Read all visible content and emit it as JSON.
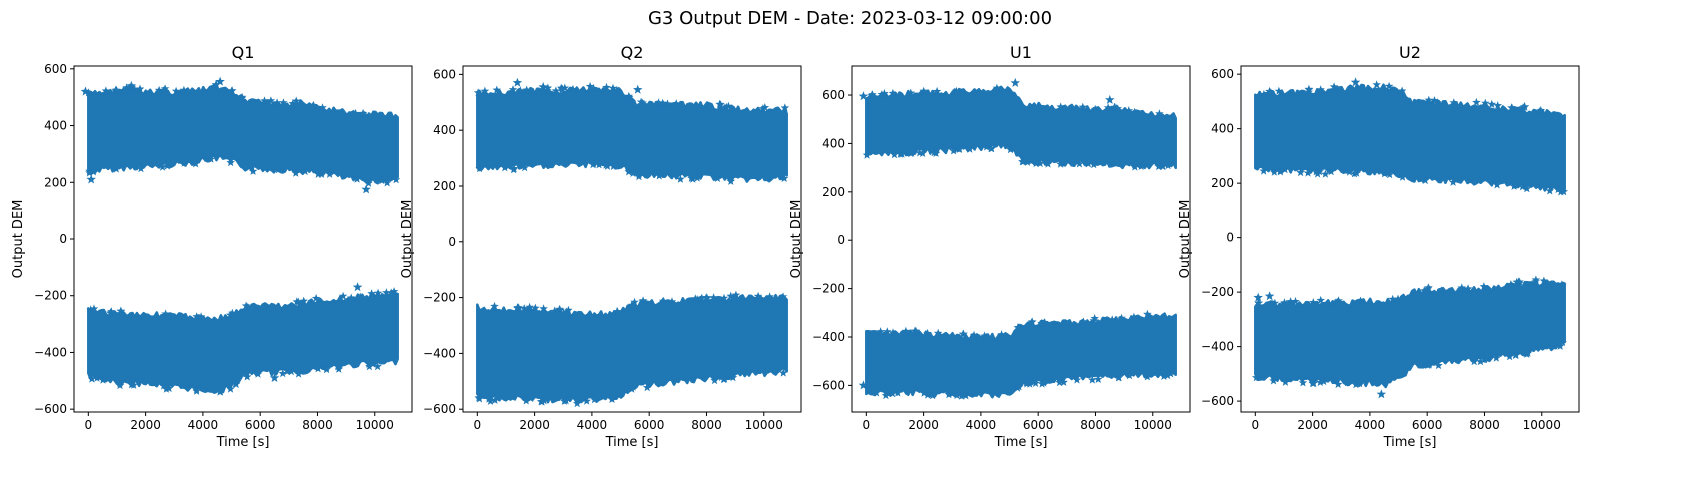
{
  "figure_title": "G3 Output DEM - Date: 2023-03-12 09:00:00",
  "chart_data": [
    {
      "type": "scatter",
      "title": "Q1",
      "xlabel": "Time [s]",
      "ylabel": "Output DEM",
      "marker": "star",
      "color": "#1f77b4",
      "xlim": [
        -500,
        11300
      ],
      "ylim": [
        -610,
        610
      ],
      "xticks": [
        0,
        2000,
        4000,
        6000,
        8000,
        10000
      ],
      "yticks": [
        -600,
        -400,
        -200,
        0,
        200,
        400,
        600
      ],
      "x": [
        0,
        500,
        1000,
        1500,
        2000,
        2500,
        3000,
        3500,
        4000,
        4500,
        5000,
        5500,
        6000,
        6500,
        7000,
        7500,
        8000,
        8500,
        9000,
        9500,
        10000,
        10500,
        10800
      ],
      "series": [
        {
          "upper_max": [
            510,
            515,
            520,
            525,
            515,
            520,
            515,
            520,
            525,
            535,
            515,
            485,
            480,
            480,
            475,
            480,
            460,
            455,
            445,
            440,
            440,
            440,
            430
          ],
          "upper_min": [
            240,
            245,
            250,
            255,
            255,
            260,
            265,
            270,
            280,
            285,
            280,
            250,
            250,
            245,
            245,
            240,
            235,
            230,
            215,
            210,
            205,
            210,
            220
          ]
        },
        {
          "upper_max": [
            -255,
            -260,
            -265,
            -265,
            -265,
            -270,
            -270,
            -275,
            -280,
            -280,
            -270,
            -240,
            -235,
            -235,
            -235,
            -230,
            -220,
            -215,
            -210,
            -205,
            -200,
            -200,
            -195
          ],
          "upper_min": [
            -480,
            -495,
            -505,
            -510,
            -505,
            -515,
            -520,
            -525,
            -530,
            -535,
            -520,
            -475,
            -470,
            -470,
            -465,
            -465,
            -455,
            -450,
            -445,
            -440,
            -440,
            -435,
            -430
          ]
        }
      ],
      "outliers": [
        [
          100,
          210
        ],
        [
          -100,
          520
        ],
        [
          1500,
          540
        ],
        [
          4600,
          555
        ],
        [
          9700,
          175
        ],
        [
          9400,
          -170
        ],
        [
          6500,
          -490
        ]
      ]
    },
    {
      "type": "scatter",
      "title": "Q2",
      "xlabel": "Time [s]",
      "ylabel": "Output DEM",
      "marker": "star",
      "color": "#1f77b4",
      "xlim": [
        -500,
        11300
      ],
      "ylim": [
        -610,
        630
      ],
      "xticks": [
        0,
        2000,
        4000,
        6000,
        8000,
        10000
      ],
      "yticks": [
        -600,
        -400,
        -200,
        0,
        200,
        400,
        600
      ],
      "x": [
        0,
        500,
        1000,
        1500,
        2000,
        2500,
        3000,
        3500,
        4000,
        4500,
        5000,
        5500,
        6000,
        6500,
        7000,
        7500,
        8000,
        8500,
        9000,
        9500,
        10000,
        10500,
        10800
      ],
      "series": [
        {
          "upper_max": [
            530,
            535,
            535,
            540,
            540,
            540,
            540,
            545,
            545,
            550,
            540,
            495,
            495,
            490,
            490,
            490,
            490,
            480,
            475,
            470,
            470,
            470,
            470
          ],
          "upper_min": [
            265,
            265,
            270,
            270,
            270,
            275,
            275,
            275,
            280,
            280,
            270,
            245,
            240,
            240,
            235,
            235,
            235,
            230,
            225,
            225,
            225,
            230,
            235
          ]
        },
        {
          "upper_max": [
            -235,
            -240,
            -245,
            -245,
            -245,
            -250,
            -255,
            -255,
            -260,
            -260,
            -250,
            -225,
            -220,
            -215,
            -215,
            -210,
            -205,
            -205,
            -200,
            -200,
            -200,
            -200,
            -200
          ],
          "upper_min": [
            -555,
            -560,
            -560,
            -560,
            -560,
            -565,
            -565,
            -570,
            -565,
            -565,
            -550,
            -515,
            -510,
            -505,
            -500,
            -495,
            -490,
            -485,
            -480,
            -475,
            -470,
            -465,
            -460
          ]
        }
      ],
      "outliers": [
        [
          1400,
          570
        ],
        [
          2300,
          555
        ],
        [
          5600,
          545
        ],
        [
          2700,
          -250
        ],
        [
          9800,
          -205
        ]
      ]
    },
    {
      "type": "scatter",
      "title": "U1",
      "xlabel": "Time [s]",
      "ylabel": "Output DEM",
      "marker": "star",
      "color": "#1f77b4",
      "xlim": [
        -500,
        11300
      ],
      "ylim": [
        -710,
        720
      ],
      "xticks": [
        0,
        2000,
        4000,
        6000,
        8000,
        10000
      ],
      "yticks": [
        -600,
        -400,
        -200,
        0,
        200,
        400,
        600
      ],
      "x": [
        0,
        500,
        1000,
        1500,
        2000,
        2500,
        3000,
        3500,
        4000,
        4500,
        5000,
        5500,
        6000,
        6500,
        7000,
        7500,
        8000,
        8500,
        9000,
        9500,
        10000,
        10500,
        10800
      ],
      "series": [
        {
          "upper_max": [
            595,
            600,
            600,
            605,
            605,
            610,
            610,
            615,
            615,
            620,
            625,
            555,
            555,
            550,
            550,
            545,
            540,
            540,
            535,
            525,
            520,
            520,
            510
          ],
          "upper_min": [
            355,
            360,
            360,
            365,
            370,
            370,
            375,
            380,
            385,
            390,
            390,
            330,
            325,
            325,
            320,
            320,
            315,
            315,
            310,
            310,
            310,
            310,
            310
          ]
        },
        {
          "upper_max": [
            -385,
            -385,
            -385,
            -385,
            -390,
            -390,
            -395,
            -400,
            -400,
            -400,
            -395,
            -345,
            -345,
            -345,
            -340,
            -340,
            -335,
            -330,
            -325,
            -320,
            -315,
            -315,
            -315
          ],
          "upper_min": [
            -625,
            -630,
            -630,
            -630,
            -630,
            -635,
            -635,
            -640,
            -640,
            -640,
            -630,
            -585,
            -585,
            -580,
            -575,
            -570,
            -565,
            -560,
            -560,
            -555,
            -555,
            -550,
            -550
          ]
        }
      ],
      "outliers": [
        [
          5200,
          650
        ],
        [
          8500,
          580
        ],
        [
          -100,
          -600
        ],
        [
          -100,
          595
        ]
      ]
    },
    {
      "type": "scatter",
      "title": "U2",
      "xlabel": "Time [s]",
      "ylabel": "Output DEM",
      "marker": "star",
      "color": "#1f77b4",
      "xlim": [
        -500,
        11300
      ],
      "ylim": [
        -640,
        630
      ],
      "xticks": [
        0,
        2000,
        4000,
        6000,
        8000,
        10000
      ],
      "yticks": [
        -600,
        -400,
        -200,
        0,
        200,
        400,
        600
      ],
      "x": [
        0,
        500,
        1000,
        1500,
        2000,
        2500,
        3000,
        3500,
        4000,
        4500,
        5000,
        5500,
        6000,
        6500,
        7000,
        7500,
        8000,
        8500,
        9000,
        9500,
        10000,
        10500,
        10800
      ],
      "series": [
        {
          "upper_max": [
            525,
            525,
            530,
            530,
            535,
            540,
            545,
            550,
            550,
            555,
            545,
            495,
            495,
            490,
            490,
            485,
            485,
            475,
            470,
            465,
            460,
            455,
            440
          ],
          "upper_min": [
            255,
            250,
            250,
            250,
            245,
            245,
            245,
            245,
            240,
            240,
            230,
            215,
            215,
            210,
            210,
            205,
            205,
            200,
            195,
            190,
            185,
            180,
            180
          ]
        },
        {
          "upper_max": [
            -250,
            -245,
            -245,
            -245,
            -245,
            -240,
            -240,
            -240,
            -235,
            -235,
            -225,
            -200,
            -195,
            -195,
            -190,
            -190,
            -190,
            -180,
            -175,
            -170,
            -165,
            -165,
            -160
          ],
          "upper_min": [
            -510,
            -515,
            -520,
            -520,
            -525,
            -525,
            -530,
            -535,
            -535,
            -540,
            -520,
            -470,
            -465,
            -460,
            -455,
            -450,
            -445,
            -435,
            -430,
            -420,
            -410,
            -400,
            -380
          ]
        }
      ],
      "outliers": [
        [
          100,
          -220
        ],
        [
          500,
          -215
        ],
        [
          3500,
          570
        ],
        [
          4400,
          -575
        ],
        [
          9400,
          480
        ],
        [
          10700,
          -175
        ]
      ]
    }
  ]
}
